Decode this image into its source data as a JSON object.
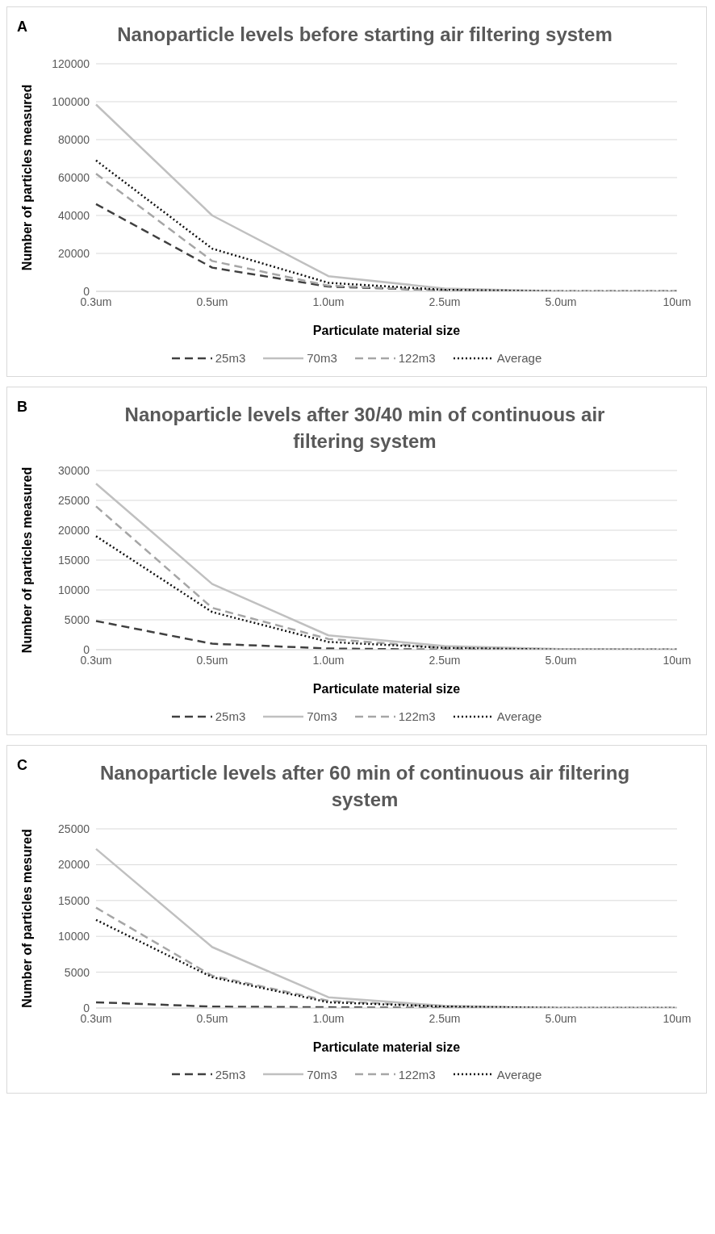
{
  "chart_data": [
    {
      "type": "line",
      "annotations": [
        "A"
      ],
      "title": "Nanoparticle levels before starting air filtering system",
      "xlabel": "Particulate material size",
      "ylabel": "Number of particles measured",
      "categories": [
        "0.3um",
        "0.5um",
        "1.0um",
        "2.5um",
        "5.0um",
        "10um"
      ],
      "ylim": [
        0,
        120000
      ],
      "yticks": [
        0,
        20000,
        40000,
        60000,
        80000,
        100000,
        120000
      ],
      "grid": "y",
      "legend": "bottom",
      "series": [
        {
          "name": "25m3",
          "color": "#404040",
          "line_style": "dashed",
          "values": [
            46000,
            12500,
            2500,
            500,
            0,
            0
          ]
        },
        {
          "name": "70m3",
          "color": "#c0c0c0",
          "line_style": "solid",
          "values": [
            98500,
            40000,
            8000,
            1500,
            0,
            0
          ]
        },
        {
          "name": "122m3",
          "color": "#a6a6a6",
          "line_style": "dashed",
          "values": [
            62000,
            16000,
            3000,
            500,
            0,
            0
          ]
        },
        {
          "name": "Average",
          "color": "#111111",
          "line_style": "dotted",
          "values": [
            69000,
            22500,
            4500,
            800,
            0,
            0
          ]
        }
      ]
    },
    {
      "type": "line",
      "annotations": [
        "B"
      ],
      "title": "Nanoparticle levels after 30/40 min of continuous air filtering system",
      "xlabel": "Particulate material size",
      "ylabel": "Number of particles measured",
      "categories": [
        "0.3um",
        "0.5um",
        "1.0um",
        "2.5um",
        "5.0um",
        "10um"
      ],
      "ylim": [
        0,
        30000
      ],
      "yticks": [
        0,
        5000,
        10000,
        15000,
        20000,
        25000,
        30000
      ],
      "grid": "y",
      "legend": "bottom",
      "series": [
        {
          "name": "25m3",
          "color": "#404040",
          "line_style": "dashed",
          "values": [
            4800,
            1000,
            200,
            0,
            0,
            0
          ]
        },
        {
          "name": "70m3",
          "color": "#c0c0c0",
          "line_style": "solid",
          "values": [
            27800,
            11000,
            2400,
            600,
            100,
            0
          ]
        },
        {
          "name": "122m3",
          "color": "#a6a6a6",
          "line_style": "dashed",
          "values": [
            24000,
            7000,
            1800,
            300,
            0,
            0
          ]
        },
        {
          "name": "Average",
          "color": "#111111",
          "line_style": "dotted",
          "values": [
            19000,
            6300,
            1300,
            300,
            0,
            0
          ]
        }
      ]
    },
    {
      "type": "line",
      "annotations": [
        "C"
      ],
      "title": "Nanoparticle levels after 60 min of continuous air filtering system",
      "xlabel": "Particulate material size",
      "ylabel": "Number of particles mesured",
      "categories": [
        "0.3um",
        "0.5um",
        "1.0um",
        "2.5um",
        "5.0um",
        "10um"
      ],
      "ylim": [
        0,
        25000
      ],
      "yticks": [
        0,
        5000,
        10000,
        15000,
        20000,
        25000
      ],
      "grid": "y",
      "legend": "bottom",
      "series": [
        {
          "name": "25m3",
          "color": "#404040",
          "line_style": "dashed",
          "values": [
            800,
            200,
            100,
            0,
            0,
            0
          ]
        },
        {
          "name": "70m3",
          "color": "#c0c0c0",
          "line_style": "solid",
          "values": [
            22200,
            8500,
            1500,
            300,
            0,
            0
          ]
        },
        {
          "name": "122m3",
          "color": "#a6a6a6",
          "line_style": "dashed",
          "values": [
            14000,
            4500,
            1000,
            200,
            0,
            0
          ]
        },
        {
          "name": "Average",
          "color": "#111111",
          "line_style": "dotted",
          "values": [
            12300,
            4300,
            800,
            200,
            0,
            0
          ]
        }
      ]
    }
  ]
}
